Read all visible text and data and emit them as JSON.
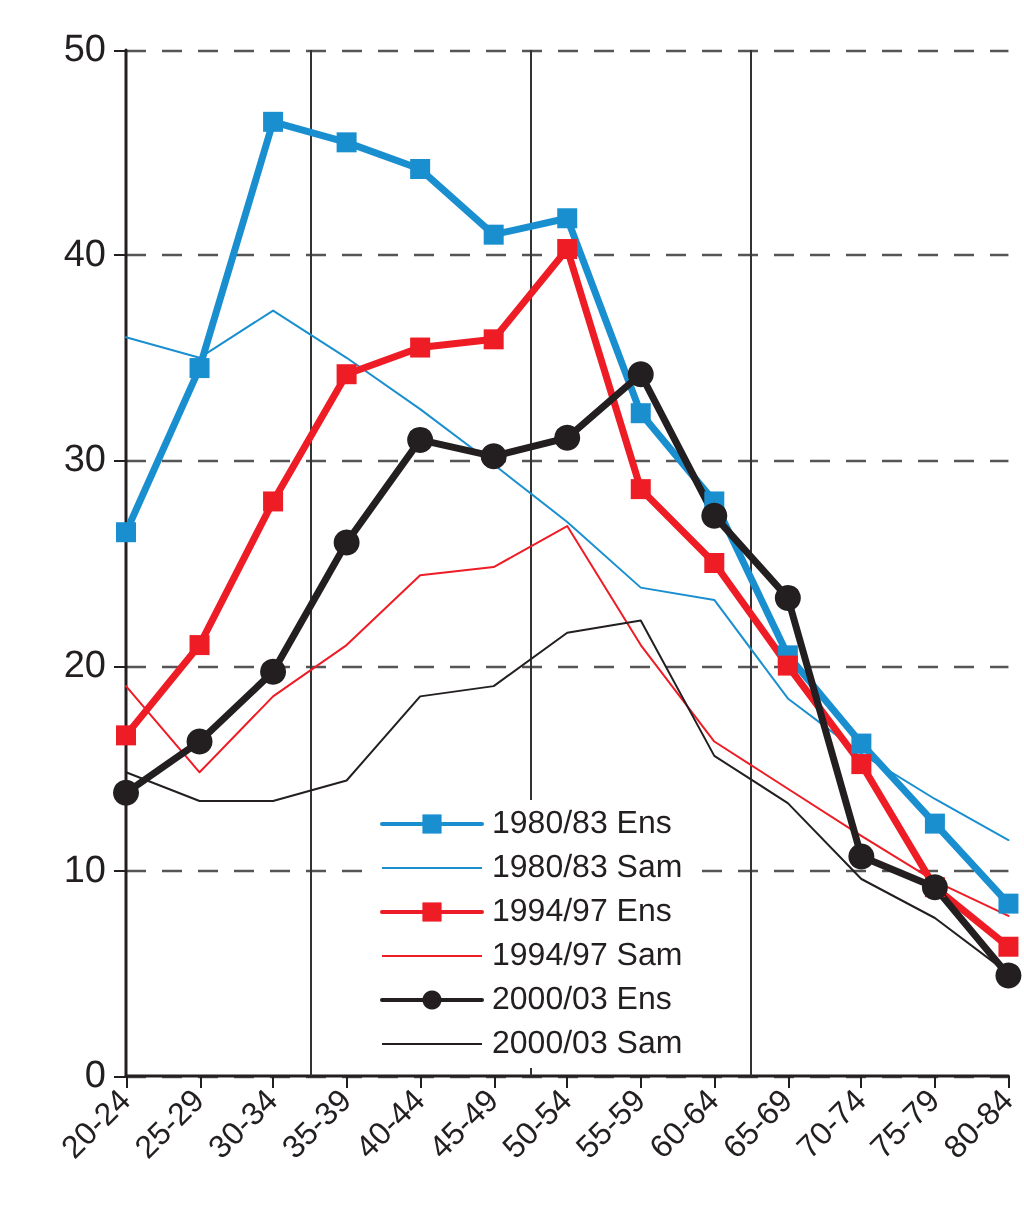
{
  "chart_data": {
    "type": "line",
    "categories": [
      "20-24",
      "25-29",
      "30-34",
      "35-39",
      "40-44",
      "45-49",
      "50-54",
      "55-59",
      "60-64",
      "65-69",
      "70-74",
      "75-79",
      "80-84"
    ],
    "ylim": [
      0,
      50
    ],
    "yticks": [
      0,
      10,
      20,
      30,
      40,
      50
    ],
    "grid": "y",
    "legend": "bottom",
    "ref_lines": [
      {
        "axis": "x",
        "value": "35-39",
        "color": "#333333"
      },
      {
        "axis": "x",
        "value": "50-54",
        "color": "#333333"
      },
      {
        "axis": "x",
        "value": "65-69",
        "color": "#333333"
      }
    ],
    "series": [
      {
        "name": "1980/83 Ens",
        "color": "#1a8fd0",
        "marker": "square",
        "values": [
          26.5,
          34.5,
          46.5,
          45.5,
          44.2,
          41,
          41.8,
          32.3,
          28,
          20.5,
          16.2,
          12.3,
          8.4
        ]
      },
      {
        "name": "1980/83 Sam",
        "color": "#1a8fd0",
        "marker": "none",
        "values": [
          36,
          35,
          37.3,
          35,
          32.5,
          29.8,
          27,
          23.8,
          23.2,
          18.4,
          15.7,
          13.5,
          11.5
        ]
      },
      {
        "name": "1994/97 Ens",
        "color": "#ee1c25",
        "marker": "square",
        "values": [
          16.6,
          21,
          28,
          34.2,
          35.5,
          35.9,
          40.3,
          28.6,
          25,
          20,
          15.2,
          9.2,
          6.3
        ]
      },
      {
        "name": "1994/97 Sam",
        "color": "#ee1c25",
        "marker": "none",
        "values": [
          19,
          14.8,
          18.5,
          21,
          24.4,
          24.8,
          26.8,
          21,
          16.3,
          14,
          11.7,
          9.5,
          7.8
        ]
      },
      {
        "name": "2000/03 Ens",
        "color": "#231f20",
        "marker": "circle",
        "values": [
          13.8,
          16.3,
          19.7,
          26,
          31,
          30.2,
          31.1,
          34.2,
          27.3,
          23.3,
          10.7,
          9.2,
          4.9
        ]
      },
      {
        "name": "2000/03 Sam",
        "color": "#231f20",
        "marker": "none",
        "values": [
          14.8,
          13.4,
          13.4,
          14.4,
          18.5,
          19,
          21.6,
          22.2,
          15.6,
          13.3,
          9.6,
          7.7,
          5
        ]
      }
    ]
  }
}
